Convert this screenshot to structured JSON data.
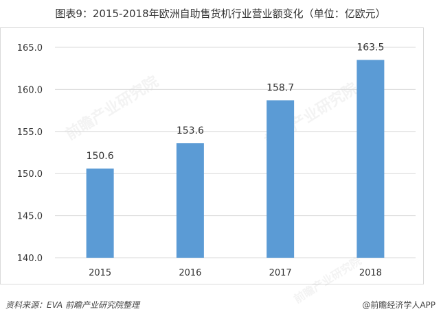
{
  "title": "图表9：2015-2018年欧洲自助售货机行业营业额变化（单位：亿欧元）",
  "footer": {
    "source": "资料来源：EVA 前瞻产业研究院整理",
    "brand": "@前瞻经济学人APP"
  },
  "watermark": {
    "text": "前瞻产业研究院"
  },
  "colors": {
    "bar": "#5b9bd5",
    "grid": "#d9d9d9",
    "text": "#333333"
  },
  "chart_data": {
    "type": "bar",
    "title": "图表9：2015-2018年欧洲自助售货机行业营业额变化（单位：亿欧元）",
    "categories": [
      "2015",
      "2016",
      "2017",
      "2018"
    ],
    "values": [
      150.6,
      153.6,
      158.7,
      163.5
    ],
    "ylim": [
      140.0,
      165.0
    ],
    "yticks": [
      "140.0",
      "145.0",
      "150.0",
      "155.0",
      "160.0",
      "165.0"
    ],
    "data_labels": [
      "150.6",
      "153.6",
      "158.7",
      "163.5"
    ],
    "grid": true,
    "legend": "none"
  }
}
